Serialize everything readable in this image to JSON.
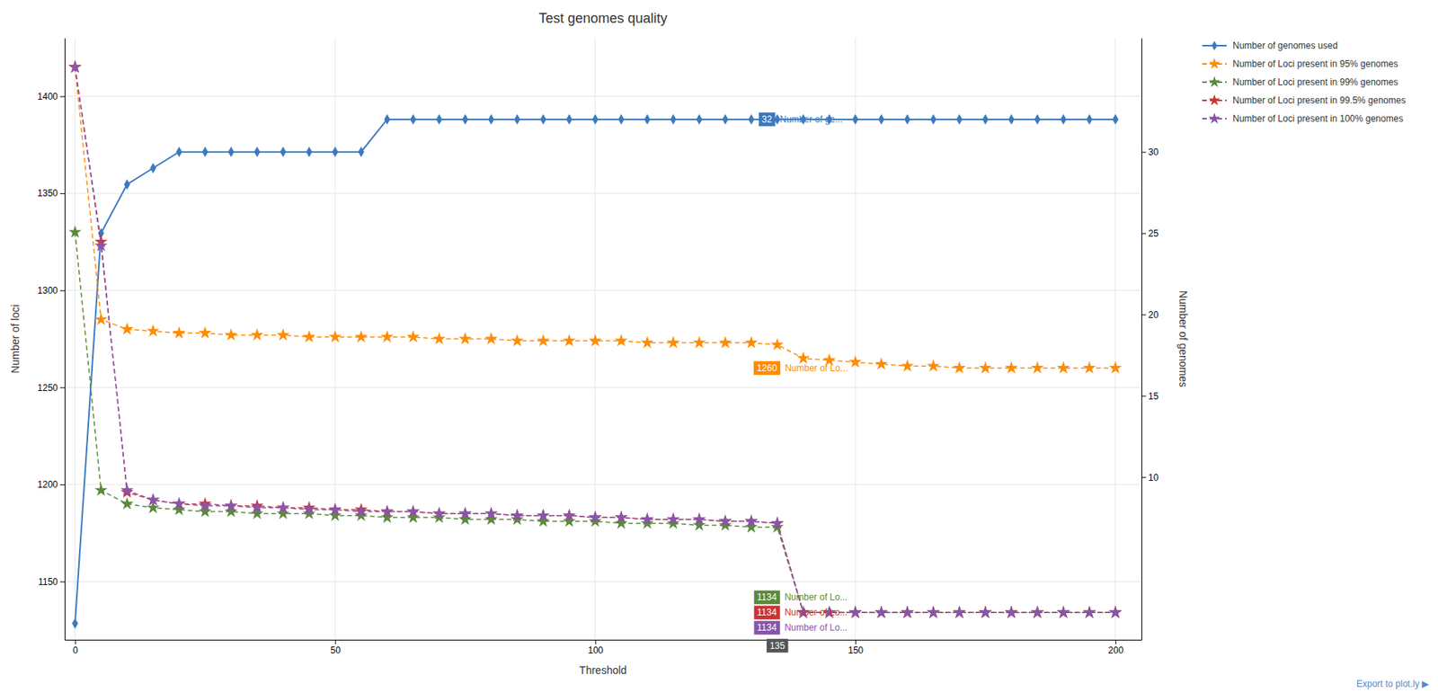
{
  "chart_data": {
    "type": "line",
    "title": "Test genomes quality",
    "xlabel": "Threshold",
    "ylabel": "Number of loci",
    "y2label": "Number of genomes",
    "x": [
      0,
      5,
      10,
      15,
      20,
      25,
      30,
      35,
      40,
      45,
      50,
      55,
      60,
      65,
      70,
      75,
      80,
      85,
      90,
      95,
      100,
      105,
      110,
      115,
      120,
      125,
      130,
      135,
      140,
      145,
      150,
      155,
      160,
      165,
      170,
      175,
      180,
      185,
      190,
      195,
      200
    ],
    "series": [
      {
        "name": "Number of genomes used",
        "color": "#3a7abf",
        "axis": "y2",
        "marker": "diamond",
        "line_style": "solid",
        "values": [
          1,
          25,
          28,
          29,
          30,
          30,
          30,
          30,
          30,
          30,
          30,
          30,
          32,
          32,
          32,
          32,
          32,
          32,
          32,
          32,
          32,
          32,
          32,
          32,
          32,
          32,
          32,
          32,
          32,
          32,
          32,
          32,
          32,
          32,
          32,
          32,
          32,
          32,
          32,
          32,
          32
        ]
      },
      {
        "name": "Number of Loci present in 95% genomes",
        "color": "#ff8c00",
        "marker": "star",
        "line_style": "dashed",
        "values": [
          1415,
          1285,
          1280,
          1279,
          1278,
          1278,
          1277,
          1277,
          1277,
          1276,
          1276,
          1276,
          1276,
          1276,
          1275,
          1275,
          1275,
          1274,
          1274,
          1274,
          1274,
          1274,
          1273,
          1273,
          1273,
          1273,
          1273,
          1272,
          1265,
          1264,
          1263,
          1262,
          1261,
          1261,
          1260,
          1260,
          1260,
          1260,
          1260,
          1260,
          1260
        ]
      },
      {
        "name": "Number of Loci present in 99% genomes",
        "color": "#5a8a3c",
        "marker": "star",
        "line_style": "dashed",
        "values": [
          1330,
          1197,
          1190,
          1188,
          1187,
          1186,
          1186,
          1185,
          1185,
          1185,
          1184,
          1184,
          1183,
          1183,
          1183,
          1182,
          1182,
          1182,
          1181,
          1181,
          1181,
          1180,
          1180,
          1180,
          1179,
          1179,
          1178,
          1178,
          1134,
          1134,
          1134,
          1134,
          1134,
          1134,
          1134,
          1134,
          1134,
          1134,
          1134,
          1134,
          1134
        ]
      },
      {
        "name": "Number of Loci present in 99.5% genomes",
        "color": "#cc3333",
        "marker": "star",
        "line_style": "dashed",
        "values": [
          1415,
          1325,
          1196,
          1192,
          1190,
          1190,
          1189,
          1189,
          1188,
          1188,
          1187,
          1187,
          1186,
          1186,
          1185,
          1185,
          1185,
          1184,
          1184,
          1184,
          1183,
          1183,
          1182,
          1182,
          1182,
          1181,
          1181,
          1180,
          1134,
          1134,
          1134,
          1134,
          1134,
          1134,
          1134,
          1134,
          1134,
          1134,
          1134,
          1134,
          1134
        ]
      },
      {
        "name": "Number of Loci present in 100% genomes",
        "color": "#8855aa",
        "marker": "star",
        "line_style": "dashed",
        "values": [
          1415,
          1323,
          1197,
          1192,
          1190,
          1189,
          1189,
          1188,
          1188,
          1187,
          1187,
          1186,
          1186,
          1186,
          1185,
          1185,
          1185,
          1184,
          1184,
          1184,
          1183,
          1183,
          1182,
          1182,
          1182,
          1181,
          1181,
          1180,
          1134,
          1134,
          1134,
          1134,
          1134,
          1134,
          1134,
          1134,
          1134,
          1134,
          1134,
          1134,
          1134
        ]
      }
    ],
    "xlim": [
      -2,
      205
    ],
    "xticks": [
      0,
      50,
      100,
      150,
      200
    ],
    "ylim": [
      1120,
      1430
    ],
    "yticks": [
      1150,
      1200,
      1250,
      1300,
      1350,
      1400
    ],
    "y2lim": [
      0,
      37
    ],
    "y2ticks": [
      10,
      15,
      20,
      25,
      30
    ],
    "grid": true,
    "legend": "upper right",
    "annotations": [
      {
        "x": 133,
        "y": 32,
        "axis": "y2",
        "text": "Number of ge...",
        "color": "#3a7abf"
      },
      {
        "x": 133,
        "y": 1260,
        "text": "Number of Lo...",
        "color": "#ff8c00"
      },
      {
        "x": 133,
        "y": 1134,
        "text": "Number of Lo...",
        "color": "#5a8a3c"
      },
      {
        "x": 133,
        "y": 1134,
        "text": "Number of Lo...",
        "color": "#cc3333"
      },
      {
        "x": 133,
        "y": 1134,
        "text": "Number of Lo...",
        "color": "#8855aa"
      },
      {
        "x": 135,
        "color": "#555555"
      },
      {
        "text": "Export to plot.ly ▶",
        "color": "#5588cc"
      }
    ]
  }
}
